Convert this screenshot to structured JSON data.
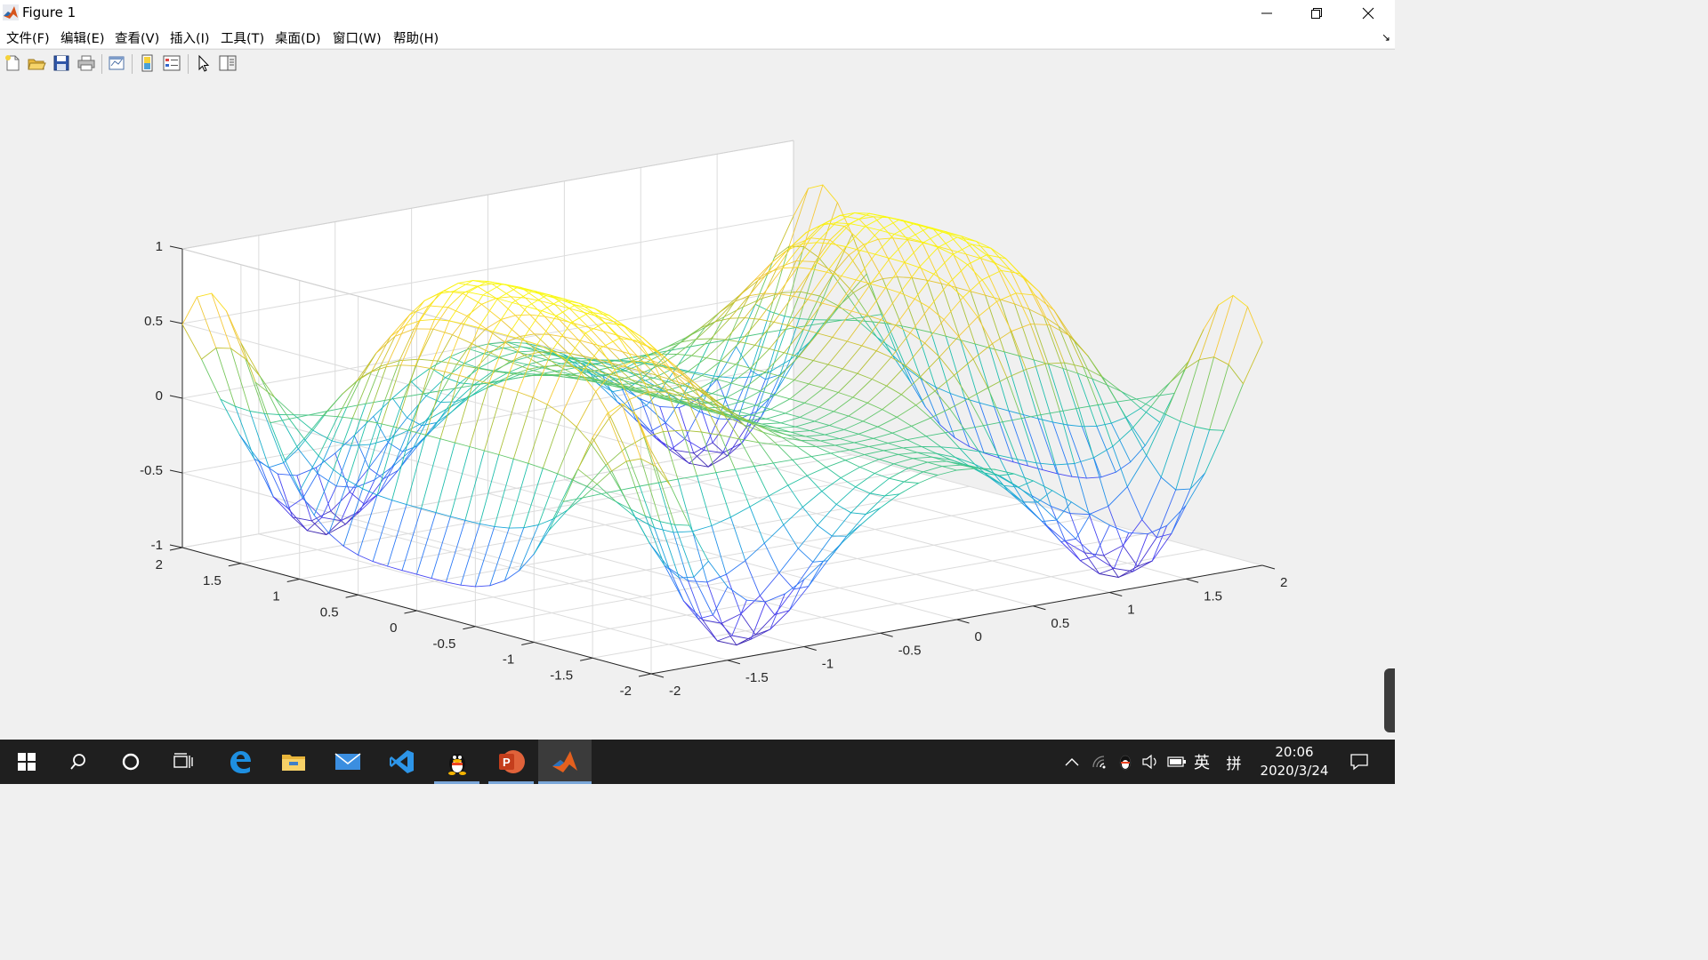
{
  "window": {
    "title": "Figure 1",
    "controls": {
      "minimize": "minimize-icon",
      "maximize": "restore-icon",
      "close": "close-icon"
    }
  },
  "menu": {
    "items": [
      "文件(F)",
      "编辑(E)",
      "查看(V)",
      "插入(I)",
      "工具(T)",
      "桌面(D)",
      "窗口(W)",
      "帮助(H)"
    ]
  },
  "toolbar": {
    "buttons": [
      "new-figure-icon",
      "open-file-icon",
      "save-icon",
      "print-icon",
      "link-plot-icon",
      "insert-colorbar-icon",
      "insert-legend-icon",
      "edit-plot-icon",
      "property-inspector-icon"
    ]
  },
  "chart_data": {
    "type": "mesh",
    "function": "z = sin(x^2) * cos(y^2)",
    "x": {
      "ticks": [
        -2,
        -1.5,
        -1,
        -0.5,
        0,
        0.5,
        1,
        1.5,
        2
      ],
      "labels": [
        "-2",
        "-1.5",
        "-1",
        "-0.5",
        "0",
        "0.5",
        "1",
        "1.5",
        "2"
      ],
      "range": [
        -2,
        2
      ]
    },
    "y": {
      "ticks": [
        -2,
        -1.5,
        -1,
        -0.5,
        0,
        0.5,
        1,
        1.5,
        2
      ],
      "labels": [
        "-2",
        "-1.5",
        "-1",
        "-0.5",
        "0",
        "0.5",
        "1",
        "1.5",
        "2"
      ],
      "range": [
        -2,
        2
      ]
    },
    "z": {
      "ticks": [
        -1,
        -0.5,
        0,
        0.5,
        1
      ],
      "labels": [
        "-1",
        "-0.5",
        "0",
        "0.5",
        "1"
      ],
      "range": [
        -1,
        1
      ]
    },
    "grid": "on",
    "colormap": "parula",
    "colormap_stops": [
      "#3e26a8",
      "#4a3ff2",
      "#2c7bf6",
      "#1aa8d8",
      "#21c2a6",
      "#71c861",
      "#c2c02d",
      "#f6c93b",
      "#fae41a",
      "#f9fb0e"
    ],
    "mesh_resolution": 33,
    "title": "",
    "xlabel": "",
    "ylabel": "",
    "zlabel": ""
  },
  "taskbar": {
    "apps": [
      "windows-start-icon",
      "search-icon",
      "cortana-icon",
      "task-view-icon",
      "edge-icon",
      "file-explorer-icon",
      "mail-icon",
      "vscode-icon",
      "qq-icon",
      "powerpoint-icon",
      "matlab-icon"
    ],
    "tray": {
      "ime_mode": "英",
      "ime_layout": "拼"
    },
    "clock": {
      "time": "20:06",
      "date": "2020/3/24"
    }
  }
}
